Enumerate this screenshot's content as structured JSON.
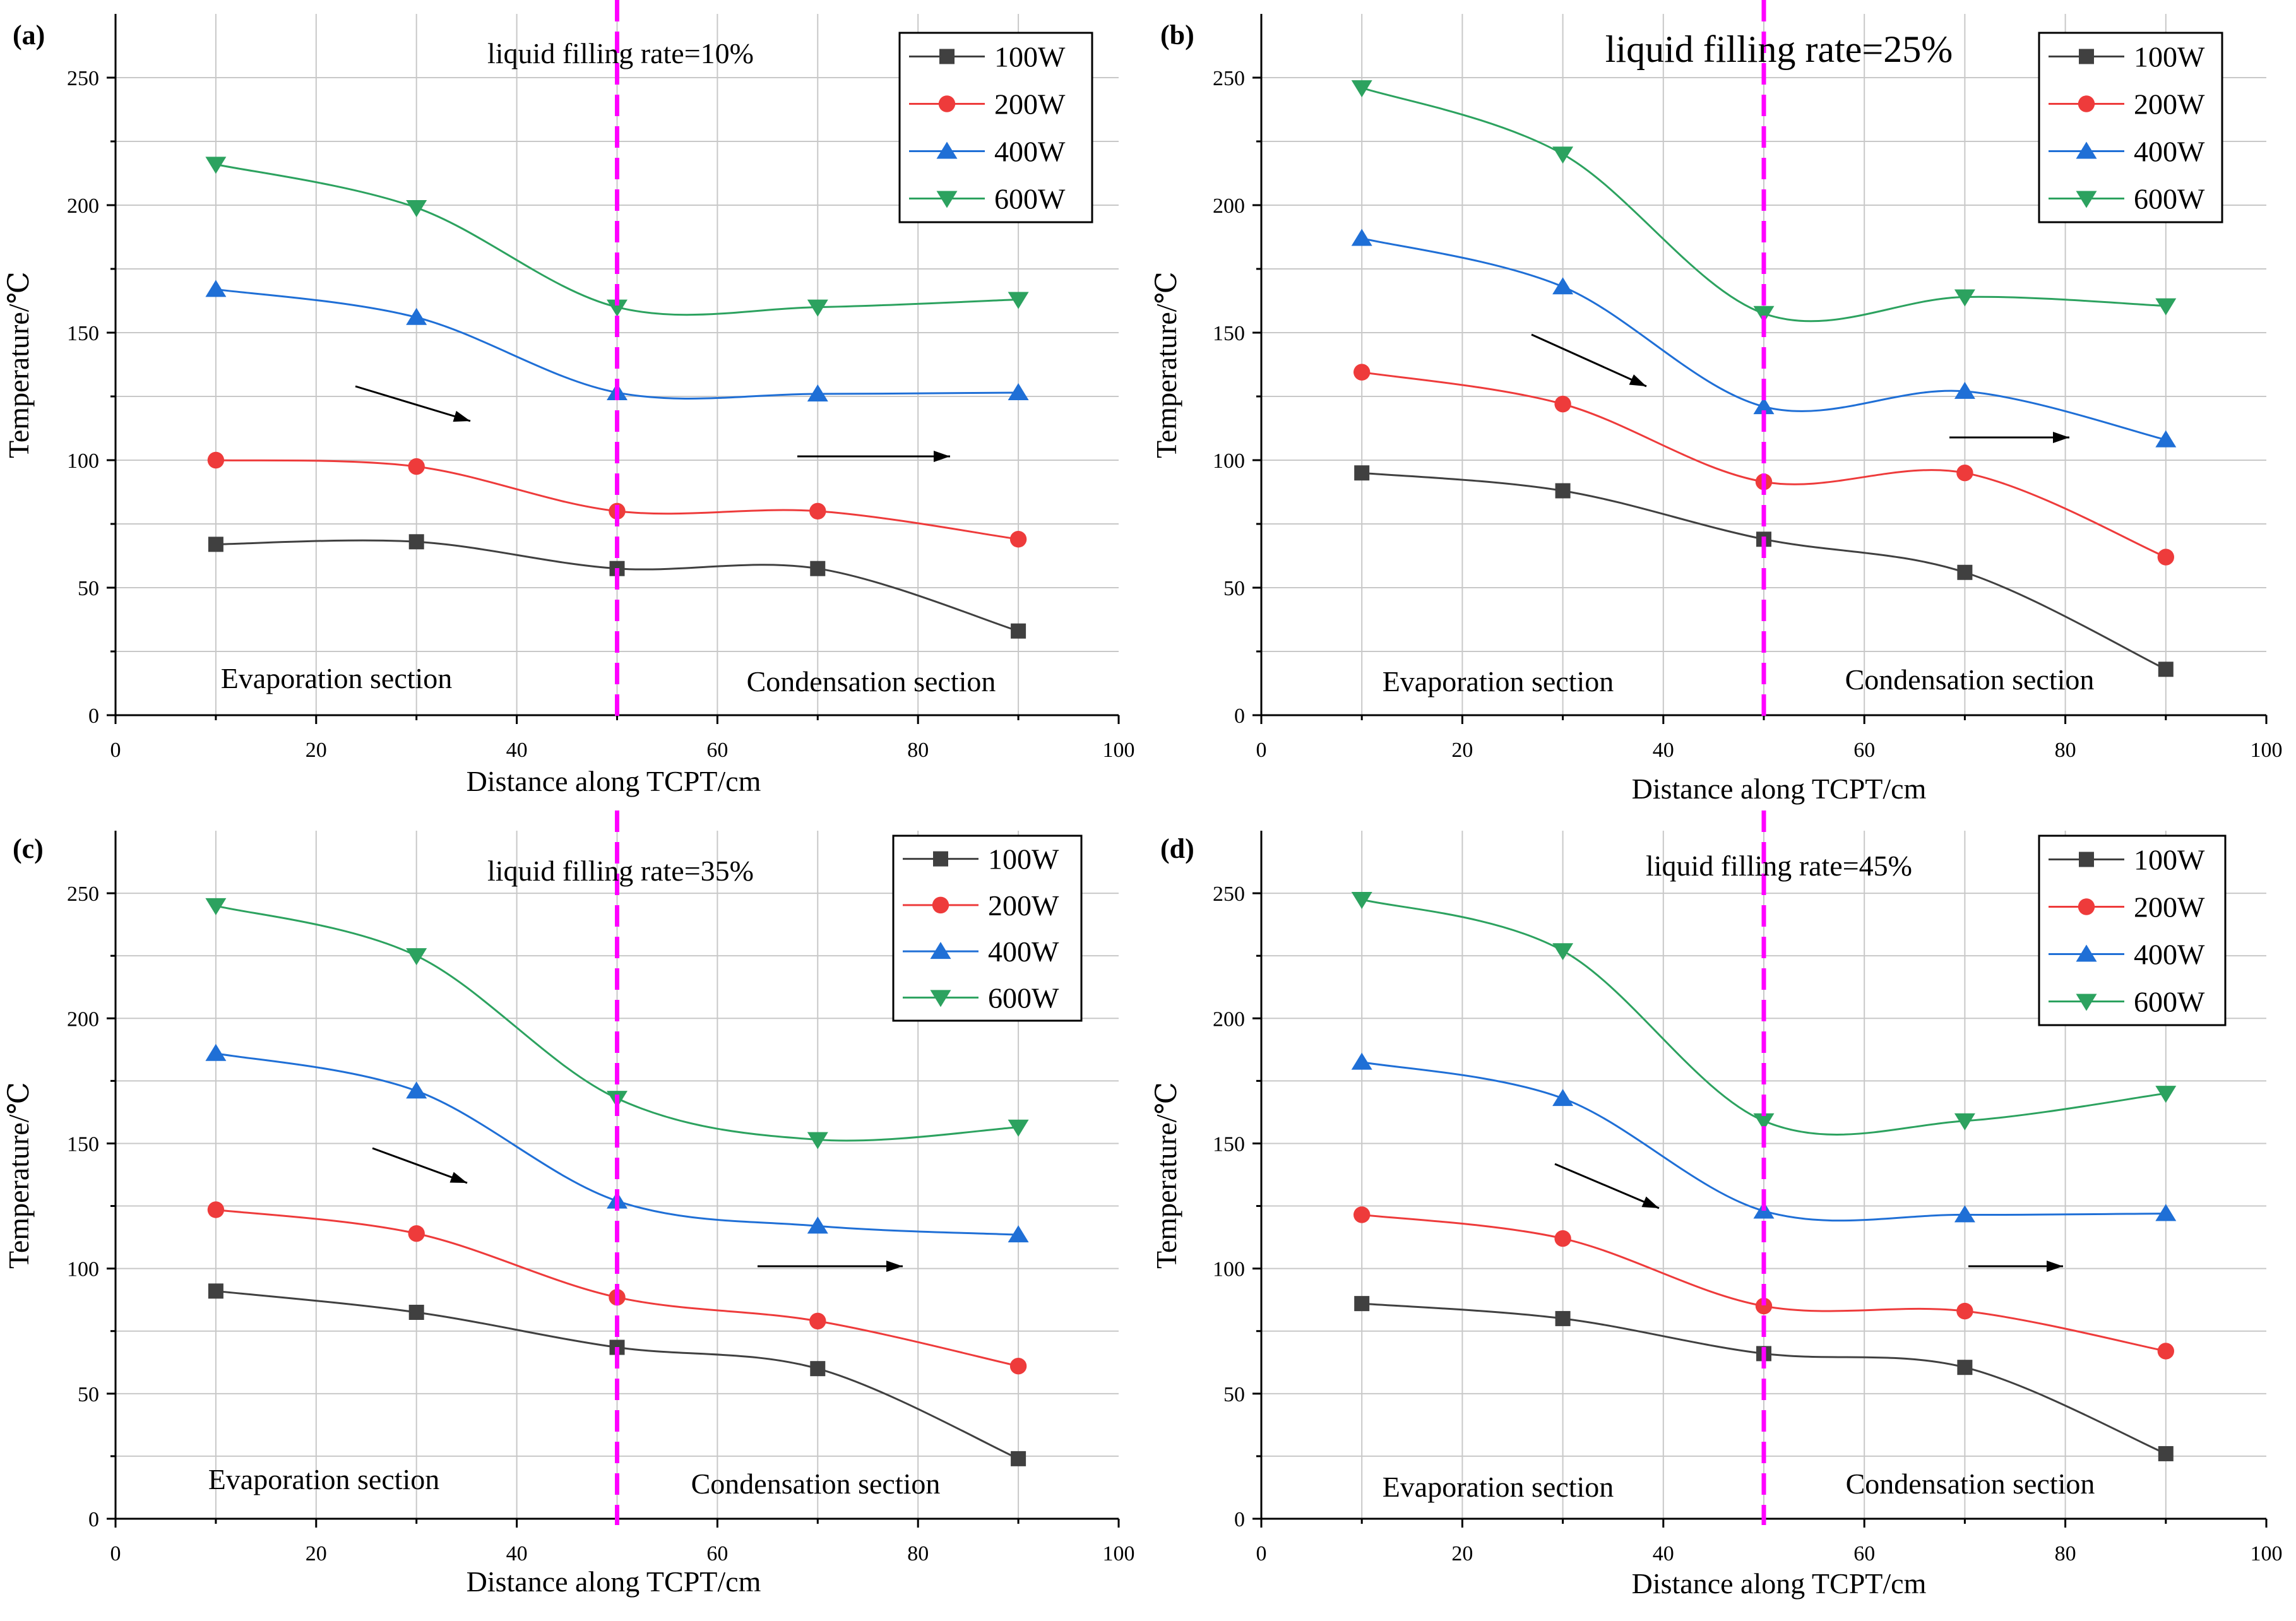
{
  "chart_data": [
    {
      "type": "line",
      "panel_label": "(a)",
      "annotation": "liquid filling rate=10%",
      "annotation_size": "normal",
      "xlabel": "Distance along  TCPT/cm",
      "ylabel": "Temperature/℃",
      "xlim": [
        0,
        100
      ],
      "ylim": [
        0,
        275
      ],
      "x_ticks": [
        0,
        20,
        40,
        60,
        80,
        100
      ],
      "y_ticks": [
        0,
        50,
        100,
        150,
        200,
        250
      ],
      "divider_x": 50,
      "region_labels": [
        "Evaporation section",
        "Condensation section"
      ],
      "x": [
        10,
        30,
        50,
        70,
        90
      ],
      "series": [
        {
          "name": "100W",
          "color": "#404040",
          "marker": "square",
          "values": [
            67,
            68,
            57.5,
            57.5,
            33
          ]
        },
        {
          "name": "200W",
          "color": "#ee3b3b",
          "marker": "circle",
          "values": [
            100,
            97.5,
            80,
            80,
            69
          ]
        },
        {
          "name": "400W",
          "color": "#1f6fd6",
          "marker": "triangle-up",
          "values": [
            167,
            156,
            126.5,
            126,
            126.5
          ]
        },
        {
          "name": "600W",
          "color": "#2ca25f",
          "marker": "triangle-down",
          "values": [
            216,
            199,
            160,
            160,
            163
          ]
        }
      ]
    },
    {
      "type": "line",
      "panel_label": "(b)",
      "annotation": "liquid filling rate=25%",
      "annotation_size": "large",
      "xlabel": "Distance along  TCPT/cm",
      "ylabel": "Temperature/℃",
      "xlim": [
        0,
        100
      ],
      "ylim": [
        0,
        275
      ],
      "x_ticks": [
        0,
        20,
        40,
        60,
        80,
        100
      ],
      "y_ticks": [
        0,
        50,
        100,
        150,
        200,
        250
      ],
      "divider_x": 50,
      "region_labels": [
        "Evaporation section",
        "Condensation section"
      ],
      "x": [
        10,
        30,
        50,
        70,
        90
      ],
      "series": [
        {
          "name": "100W",
          "color": "#404040",
          "marker": "square",
          "values": [
            95,
            88,
            69,
            56,
            18
          ]
        },
        {
          "name": "200W",
          "color": "#ee3b3b",
          "marker": "circle",
          "values": [
            134.5,
            122,
            91.5,
            95,
            62
          ]
        },
        {
          "name": "400W",
          "color": "#1f6fd6",
          "marker": "triangle-up",
          "values": [
            187,
            168,
            121,
            127,
            108
          ]
        },
        {
          "name": "600W",
          "color": "#2ca25f",
          "marker": "triangle-down",
          "values": [
            246,
            220,
            157.5,
            164,
            160.5
          ]
        }
      ]
    },
    {
      "type": "line",
      "panel_label": "(c)",
      "annotation": "liquid filling rate=35%",
      "annotation_size": "normal",
      "xlabel": "Distance along  TCPT/cm",
      "ylabel": "Temperature/℃",
      "xlim": [
        0,
        100
      ],
      "ylim": [
        0,
        275
      ],
      "x_ticks": [
        0,
        20,
        40,
        60,
        80,
        100
      ],
      "y_ticks": [
        0,
        50,
        100,
        150,
        200,
        250
      ],
      "divider_x": 50,
      "region_labels": [
        "Evaporation section",
        "Condensation section"
      ],
      "x": [
        10,
        30,
        50,
        70,
        90
      ],
      "series": [
        {
          "name": "100W",
          "color": "#404040",
          "marker": "square",
          "values": [
            91,
            82.5,
            68.5,
            60,
            24
          ]
        },
        {
          "name": "200W",
          "color": "#ee3b3b",
          "marker": "circle",
          "values": [
            123.5,
            114,
            88.5,
            79,
            61
          ]
        },
        {
          "name": "400W",
          "color": "#1f6fd6",
          "marker": "triangle-up",
          "values": [
            186,
            171,
            127,
            117,
            113.5
          ]
        },
        {
          "name": "600W",
          "color": "#2ca25f",
          "marker": "triangle-down",
          "values": [
            245,
            225,
            168,
            151.5,
            156.5
          ]
        }
      ]
    },
    {
      "type": "line",
      "panel_label": "(d)",
      "annotation": "liquid filling rate=45%",
      "annotation_size": "normal",
      "xlabel": "Distance along  TCPT/cm",
      "ylabel": "Temperature/℃",
      "xlim": [
        0,
        100
      ],
      "ylim": [
        0,
        275
      ],
      "x_ticks": [
        0,
        20,
        40,
        60,
        80,
        100
      ],
      "y_ticks": [
        0,
        50,
        100,
        150,
        200,
        250
      ],
      "divider_x": 50,
      "region_labels": [
        "Evaporation section",
        "Condensation section"
      ],
      "x": [
        10,
        30,
        50,
        70,
        90
      ],
      "series": [
        {
          "name": "100W",
          "color": "#404040",
          "marker": "square",
          "values": [
            86,
            80,
            66,
            60.5,
            26
          ]
        },
        {
          "name": "200W",
          "color": "#ee3b3b",
          "marker": "circle",
          "values": [
            121.5,
            112,
            85,
            83,
            67
          ]
        },
        {
          "name": "400W",
          "color": "#1f6fd6",
          "marker": "triangle-up",
          "values": [
            182.5,
            168,
            123,
            121.5,
            122
          ]
        },
        {
          "name": "600W",
          "color": "#2ca25f",
          "marker": "triangle-down",
          "values": [
            247.5,
            227,
            159,
            159,
            170
          ]
        }
      ]
    }
  ]
}
